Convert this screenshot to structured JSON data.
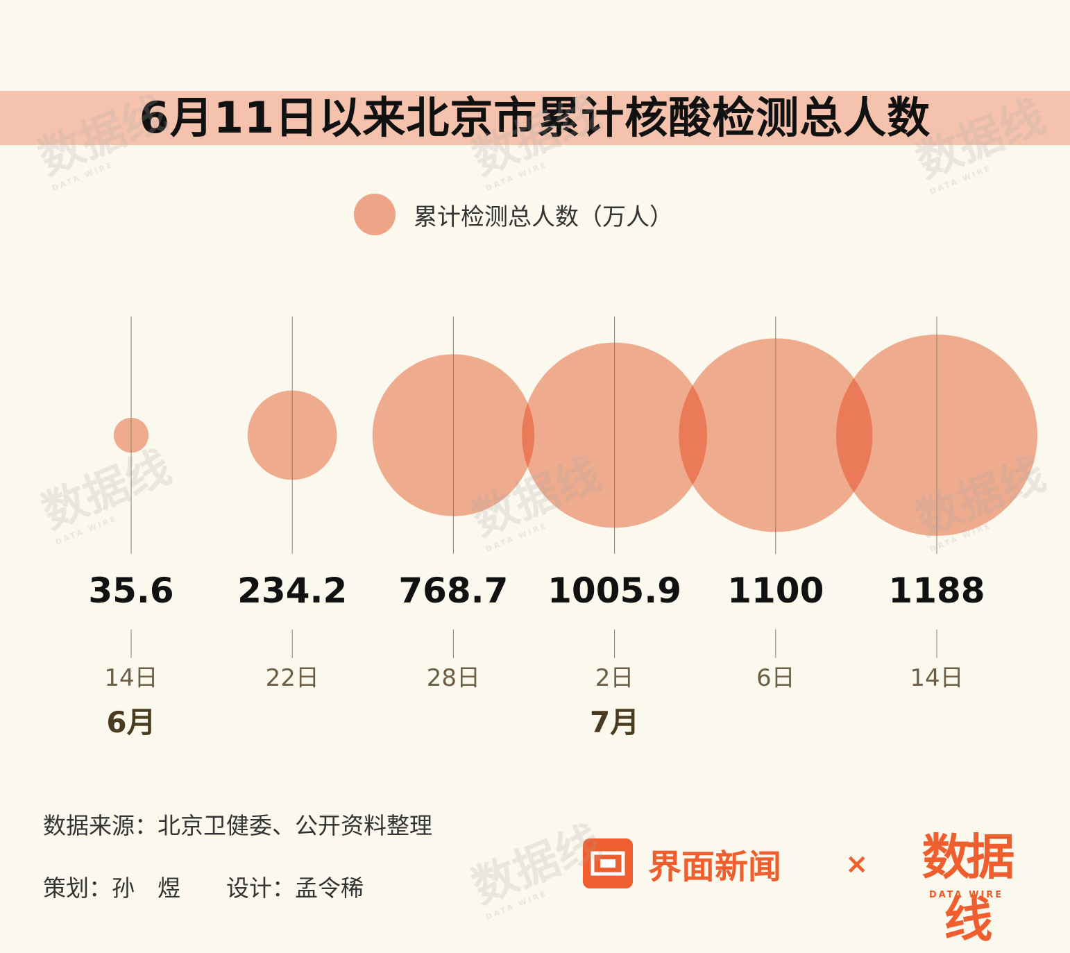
{
  "title": "6月11日以来北京市累计核酸检测总人数",
  "legend": {
    "label": "累计检测总人数（万人）"
  },
  "colors": {
    "bubble": "#eea486",
    "bubble_overlap": "#e85e3a",
    "title_band": "#f5c3ad",
    "brand": "#ef5e2e",
    "background": "#fbf8ee"
  },
  "chart_data": {
    "type": "bubble",
    "title": "6月11日以来北京市累计核酸检测总人数",
    "series": [
      {
        "name": "累计检测总人数（万人）"
      }
    ],
    "points": [
      {
        "date": "14日",
        "value": 35.6,
        "label": "35.6"
      },
      {
        "date": "22日",
        "value": 234.2,
        "label": "234.2"
      },
      {
        "date": "28日",
        "value": 768.7,
        "label": "768.7"
      },
      {
        "date": "2日",
        "value": 1005.9,
        "label": "1005.9"
      },
      {
        "date": "6日",
        "value": 1100,
        "label": "1100"
      },
      {
        "date": "14日",
        "value": 1188,
        "label": "1188"
      }
    ],
    "months": [
      {
        "label": "6月",
        "under_point": 0
      },
      {
        "label": "7月",
        "under_point": 3
      }
    ],
    "grid": false
  },
  "footer": {
    "source": "数据来源：北京卫健委、公开资料整理",
    "credits": "策划：孙　煜　　设计：孟令稀"
  },
  "brand": {
    "jiemian_name": "界面新闻",
    "separator": "×",
    "datawire_main": "数据线",
    "datawire_sub": "DATA WIRE"
  },
  "watermark": {
    "main": "数据线",
    "sub": "DATA WIRE"
  }
}
